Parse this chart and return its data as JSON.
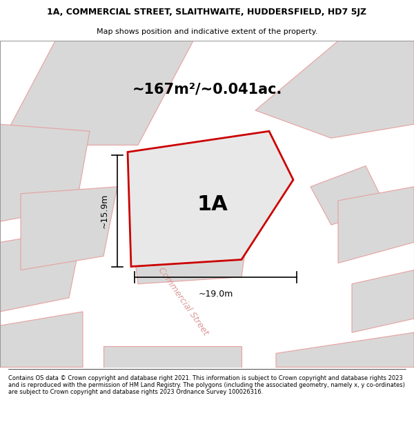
{
  "title_line1": "1A, COMMERCIAL STREET, SLAITHWAITE, HUDDERSFIELD, HD7 5JZ",
  "title_line2": "Map shows position and indicative extent of the property.",
  "area_label": "~167m²/~0.041ac.",
  "plot_label": "1A",
  "dim_width": "~19.0m",
  "dim_height": "~15.9m",
  "footer_text": "Contains OS data © Crown copyright and database right 2021. This information is subject to Crown copyright and database rights 2023 and is reproduced with the permission of HM Land Registry. The polygons (including the associated geometry, namely x, y co-ordinates) are subject to Crown copyright and database rights 2023 Ordnance Survey 100026316.",
  "map_bg": "#ffffff",
  "block_fill": "#d8d8d8",
  "block_edge": "#e8a0a0",
  "plot_fill": "#e8e8e8",
  "plot_edge": "#cc0000",
  "street_color": "#dd9999",
  "street_label": "Commercial Street",
  "title_bg": "#ffffff",
  "footer_bg": "#ffffff"
}
